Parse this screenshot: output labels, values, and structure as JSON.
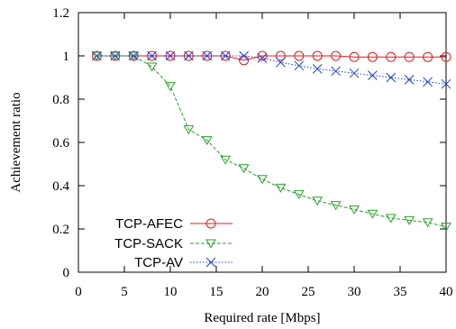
{
  "chart_data": {
    "type": "line",
    "title": "",
    "xlabel": "Required rate [Mbps]",
    "ylabel": "Achievement ratio",
    "xlim": [
      0,
      40
    ],
    "ylim": [
      0,
      1.2
    ],
    "xticks": [
      "0",
      "5",
      "10",
      "15",
      "20",
      "25",
      "30",
      "35",
      "40"
    ],
    "yticks": [
      "0",
      "0.2",
      "0.4",
      "0.6",
      "0.8",
      "1",
      "1.2"
    ],
    "grid": false,
    "legend": "bottom-left",
    "x": [
      2,
      4,
      6,
      8,
      10,
      12,
      14,
      16,
      18,
      20,
      22,
      24,
      26,
      28,
      30,
      32,
      34,
      36,
      38,
      40
    ],
    "series": [
      {
        "name": "TCP-AFEC",
        "color": "#e41a1c",
        "marker": "circle",
        "line": "solid",
        "values": [
          1.0,
          1.0,
          1.0,
          1.0,
          1.0,
          1.0,
          1.0,
          1.0,
          0.98,
          1.0,
          1.0,
          1.0,
          1.0,
          1.0,
          0.995,
          0.995,
          0.995,
          0.995,
          0.995,
          0.995
        ]
      },
      {
        "name": "TCP-SACK",
        "color": "#2ca02c",
        "marker": "triangle-down",
        "line": "dashed",
        "values": [
          1.0,
          1.0,
          1.0,
          0.95,
          0.86,
          0.66,
          0.61,
          0.52,
          0.48,
          0.43,
          0.39,
          0.36,
          0.33,
          0.31,
          0.29,
          0.27,
          0.25,
          0.24,
          0.23,
          0.21
        ]
      },
      {
        "name": "TCP-AV",
        "color": "#1f3fdc",
        "marker": "x",
        "line": "dotted",
        "values": [
          1.0,
          1.0,
          1.0,
          1.0,
          1.0,
          1.0,
          1.0,
          1.0,
          1.0,
          0.99,
          0.97,
          0.955,
          0.94,
          0.93,
          0.92,
          0.91,
          0.9,
          0.89,
          0.88,
          0.87
        ]
      }
    ]
  }
}
